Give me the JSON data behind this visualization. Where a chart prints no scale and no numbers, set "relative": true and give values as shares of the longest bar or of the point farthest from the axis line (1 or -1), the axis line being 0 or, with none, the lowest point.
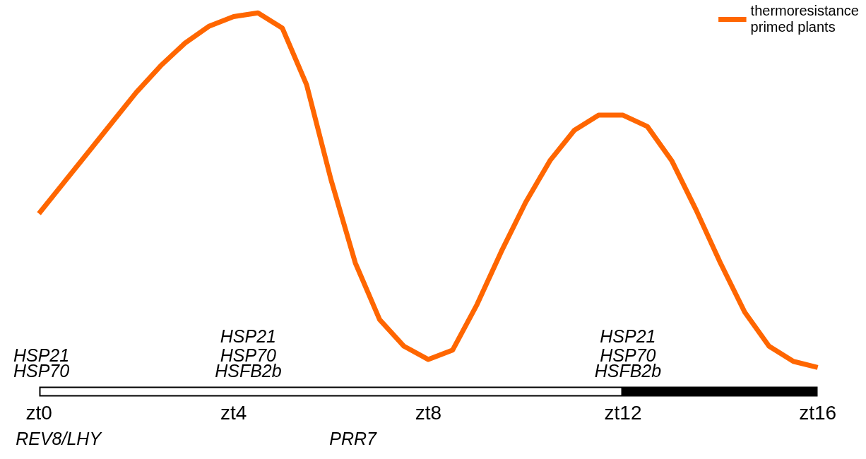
{
  "chart_data": {
    "type": "line",
    "relative": true,
    "grid": false,
    "legend": "top right",
    "marker": "none",
    "line_style": "solid",
    "categories": [
      "zt0",
      null,
      null,
      null,
      null,
      null,
      null,
      null,
      "zt4",
      null,
      null,
      null,
      null,
      null,
      null,
      null,
      "zt8",
      null,
      null,
      null,
      null,
      null,
      null,
      null,
      "zt12",
      null,
      null,
      null,
      null,
      null,
      null,
      null,
      "zt16"
    ],
    "series": [
      {
        "name": "thermoresistance primed plants",
        "color": "#ff6600",
        "values": [
          0.47,
          0.55,
          0.63,
          0.71,
          0.79,
          0.86,
          0.92,
          0.965,
          0.99,
          1.0,
          0.96,
          0.81,
          0.56,
          0.34,
          0.19,
          0.12,
          0.085,
          0.11,
          0.23,
          0.37,
          0.5,
          0.61,
          0.69,
          0.73,
          0.73,
          0.7,
          0.61,
          0.48,
          0.34,
          0.21,
          0.12,
          0.08,
          0.064
        ]
      }
    ],
    "annotations": [
      "HSP21",
      "HSP70",
      "HSP21",
      "HSP70",
      "HSFB2b",
      "HSP21",
      "HSP70",
      "HSFB2b",
      "REV8/LHY",
      "PRR7"
    ]
  }
}
